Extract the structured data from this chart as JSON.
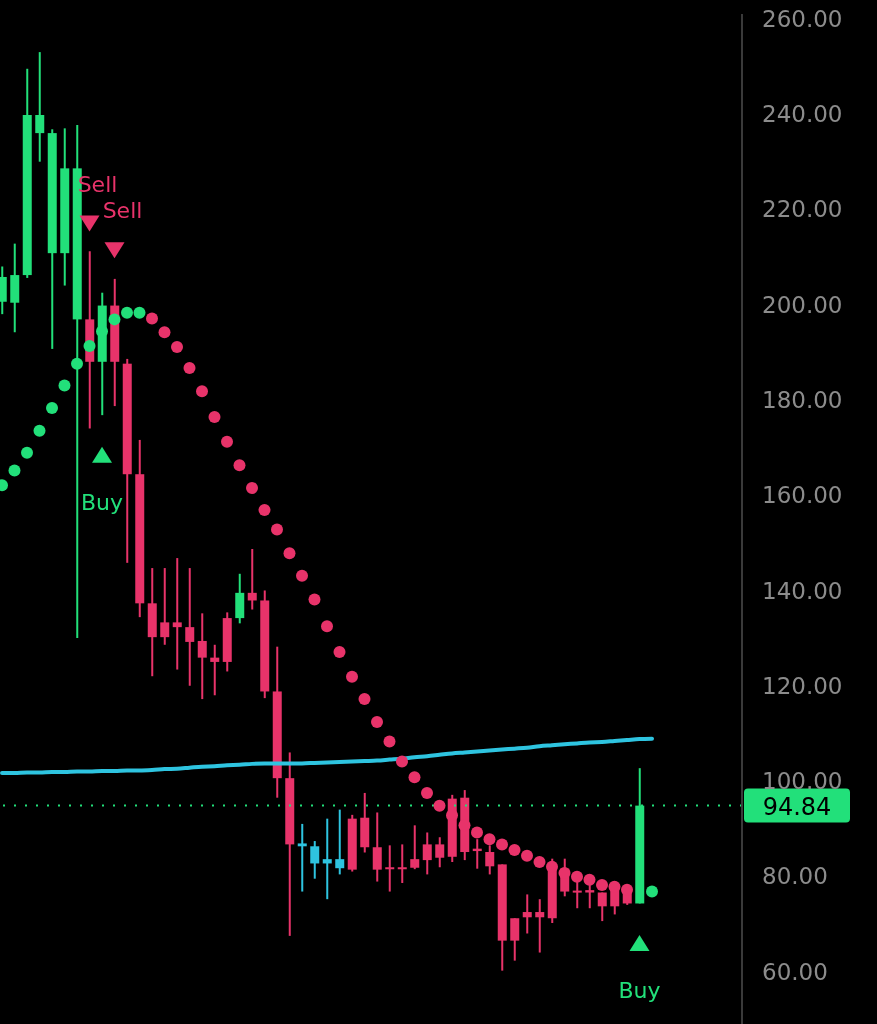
{
  "chart_data": {
    "type": "candlestick",
    "categories": [
      null,
      null,
      null,
      null,
      null,
      null,
      null,
      null,
      null,
      null,
      null,
      null,
      null,
      null,
      null,
      null,
      null,
      null,
      null,
      null,
      null,
      null,
      null,
      null,
      null,
      null,
      null,
      null,
      null,
      null,
      null,
      null,
      null,
      null,
      null,
      null,
      null,
      null,
      null,
      null,
      null,
      null,
      null,
      null,
      null,
      null,
      null,
      null,
      null,
      null,
      null,
      null,
      null
    ],
    "ohlc": [
      [
        200.6,
        208,
        198,
        205.8
      ],
      [
        200.4,
        212.8,
        194.2,
        206.2
      ],
      [
        206.2,
        249.5,
        205.6,
        239.8
      ],
      [
        236,
        253,
        230,
        239.8
      ],
      [
        210.8,
        236.8,
        190.7,
        236
      ],
      [
        210.8,
        237,
        204,
        228.6
      ],
      [
        196.9,
        237.7,
        130,
        228.6
      ],
      [
        196.9,
        211.2,
        174,
        188
      ],
      [
        188,
        202.5,
        176.8,
        199.8
      ],
      [
        199.8,
        205.4,
        178.7,
        188
      ],
      [
        187.6,
        188.6,
        145.8,
        164.4
      ],
      [
        164.4,
        171.6,
        134.4,
        137.3
      ],
      [
        137.3,
        144.7,
        122,
        130.2
      ],
      [
        133.3,
        144.7,
        128.6,
        130.2
      ],
      [
        133.3,
        146.8,
        123.4,
        132.3
      ],
      [
        132.3,
        144.7,
        120,
        129.2
      ],
      [
        129.4,
        135.2,
        117.2,
        125.9
      ],
      [
        125.9,
        128.6,
        118,
        125
      ],
      [
        134.2,
        135.4,
        123,
        125
      ],
      [
        134.2,
        143.5,
        133.1,
        139.5
      ],
      [
        139.5,
        148.7,
        136,
        137.9
      ],
      [
        137.9,
        140,
        117.4,
        118.8
      ],
      [
        118.8,
        128.2,
        96.5,
        100.6
      ],
      [
        100.6,
        106,
        67.5,
        86.7
      ],
      [
        86.9,
        91,
        76.8,
        86.3
      ],
      [
        86.3,
        87.4,
        79.5,
        82.7
      ],
      [
        83.6,
        92.1,
        75.2,
        82.7
      ],
      [
        83.6,
        94,
        80.4,
        81.7
      ],
      [
        92.1,
        92.9,
        81,
        81.4
      ],
      [
        92.3,
        97.5,
        85,
        86.1
      ],
      [
        86.1,
        93.4,
        78.9,
        81.4
      ],
      [
        81.9,
        86.5,
        76.8,
        81.5
      ],
      [
        81.9,
        86.7,
        78.6,
        81.6
      ],
      [
        83.6,
        90.7,
        81.5,
        81.8
      ],
      [
        86.7,
        89.2,
        80.4,
        83.4
      ],
      [
        86.7,
        88.2,
        81.9,
        83.9
      ],
      [
        96.3,
        97.1,
        83,
        84.1
      ],
      [
        96.5,
        98.1,
        83.4,
        85.1
      ],
      [
        85.8,
        87.8,
        81.6,
        85.3
      ],
      [
        85.1,
        86.5,
        80.4,
        82.1
      ],
      [
        82.5,
        82.5,
        60.2,
        66.5
      ],
      [
        71.2,
        71.2,
        62.3,
        66.5
      ],
      [
        72.5,
        76.2,
        68,
        71.4
      ],
      [
        72.5,
        75.2,
        64,
        71.4
      ],
      [
        82.5,
        83.7,
        70.2,
        71.2
      ],
      [
        81.6,
        83.7,
        75.8,
        76.8
      ],
      [
        77,
        79,
        73.3,
        76.6
      ],
      [
        77.1,
        79,
        73.3,
        76.6
      ],
      [
        76.6,
        76.6,
        70.6,
        73.7
      ],
      [
        77.5,
        78,
        72,
        73.7
      ],
      [
        77.5,
        77.5,
        74,
        74.3
      ],
      [
        74.3,
        102.7,
        74.3,
        94.84
      ],
      null
    ],
    "colors": [
      "#22e07a",
      "#22e07a",
      "#22e07a",
      "#22e07a",
      "#22e07a",
      "#22e07a",
      "#22e07a",
      "#e8336a",
      "#22e07a",
      "#e8336a",
      "#e8336a",
      "#e8336a",
      "#e8336a",
      "#e8336a",
      "#e8336a",
      "#e8336a",
      "#e8336a",
      "#e8336a",
      "#e8336a",
      "#22e07a",
      "#e8336a",
      "#e8336a",
      "#e8336a",
      "#e8336a",
      "#2ec4e0",
      "#2ec4e0",
      "#2ec4e0",
      "#2ec4e0",
      "#e8336a",
      "#e8336a",
      "#e8336a",
      "#e8336a",
      "#e8336a",
      "#e8336a",
      "#e8336a",
      "#e8336a",
      "#e8336a",
      "#e8336a",
      "#e8336a",
      "#e8336a",
      "#e8336a",
      "#e8336a",
      "#e8336a",
      "#e8336a",
      "#e8336a",
      "#e8336a",
      "#e8336a",
      "#e8336a",
      "#e8336a",
      "#e8336a",
      "#e8336a",
      "#22e07a",
      null
    ],
    "series": [
      {
        "type": "line",
        "color": "#2ec4e0",
        "values": [
          101.7,
          101.7,
          101.8,
          101.8,
          101.9,
          101.9,
          102.0,
          102.0,
          102.1,
          102.1,
          102.2,
          102.2,
          102.3,
          102.5,
          102.6,
          102.8,
          103.0,
          103.1,
          103.3,
          103.4,
          103.6,
          103.7,
          103.7,
          103.7,
          103.7,
          103.8,
          103.9,
          104.0,
          104.1,
          104.2,
          104.3,
          104.5,
          104.7,
          105.0,
          105.2,
          105.5,
          105.8,
          106.0,
          106.2,
          106.4,
          106.6,
          106.8,
          107.0,
          107.3,
          107.5,
          107.7,
          107.9,
          108.1,
          108.2,
          108.4,
          108.6,
          108.8,
          108.9
        ]
      },
      {
        "type": "scatter",
        "color": "#22e07a",
        "marker": "circle",
        "values": [
          162.1,
          165.2,
          168.9,
          173.5,
          178.3,
          183,
          187.6,
          191.3,
          194.4,
          196.9,
          198.3,
          198.3,
          null,
          null,
          null,
          null,
          null,
          null,
          null,
          null,
          null,
          null,
          null,
          null,
          null,
          null,
          null,
          null,
          null,
          null,
          null,
          null,
          null,
          null,
          null,
          null,
          null,
          null,
          null,
          null,
          null,
          null,
          null,
          null,
          null,
          null,
          null,
          null,
          null,
          null,
          null,
          null,
          76.8
        ]
      },
      {
        "type": "scatter",
        "color": "#e8336a",
        "marker": "circle",
        "values": [
          null,
          null,
          null,
          null,
          null,
          null,
          null,
          null,
          null,
          null,
          null,
          null,
          197.1,
          194.2,
          191.1,
          186.7,
          181.8,
          176.4,
          171.2,
          166.3,
          161.5,
          156.9,
          152.8,
          147.8,
          143.1,
          138.1,
          132.5,
          127.1,
          121.9,
          117.2,
          112.4,
          108.3,
          104.1,
          100.8,
          97.5,
          94.8,
          92.8,
          90.7,
          89.2,
          87.8,
          86.7,
          85.5,
          84.3,
          83,
          82,
          80.7,
          79.9,
          79.3,
          78.2,
          77.8,
          77.2,
          null,
          null
        ]
      },
      {
        "type": "scatter",
        "color": "#e8336a",
        "marker": "triangle",
        "values": [
          null,
          null,
          null,
          null,
          null,
          null,
          null,
          217,
          null,
          211.4,
          null,
          null,
          null,
          null,
          null,
          null,
          null,
          null,
          null,
          null,
          null,
          null,
          null,
          null,
          null,
          null,
          null,
          null,
          null,
          null,
          null,
          null,
          null,
          null,
          null,
          null,
          null,
          null,
          null,
          null,
          null,
          null,
          null,
          null,
          null,
          null,
          null,
          null,
          null,
          null,
          null,
          null,
          null
        ],
        "value_labels": [
          null,
          null,
          null,
          null,
          null,
          null,
          null,
          "Sell",
          null,
          "Sell",
          null,
          null,
          null,
          null,
          null,
          null,
          null,
          null,
          null,
          null,
          null,
          null,
          null,
          null,
          null,
          null,
          null,
          null,
          null,
          null,
          null,
          null,
          null,
          null,
          null,
          null,
          null,
          null,
          null,
          null,
          null,
          null,
          null,
          null,
          null,
          null,
          null,
          null,
          null,
          null,
          null,
          null,
          null
        ]
      },
      {
        "type": "scatter",
        "color": "#22e07a",
        "marker": "triangle",
        "values": [
          null,
          null,
          null,
          null,
          null,
          null,
          null,
          null,
          168.5,
          null,
          null,
          null,
          null,
          null,
          null,
          null,
          null,
          null,
          null,
          null,
          null,
          null,
          null,
          null,
          null,
          null,
          null,
          null,
          null,
          null,
          null,
          null,
          null,
          null,
          null,
          null,
          null,
          null,
          null,
          null,
          null,
          null,
          null,
          null,
          null,
          null,
          null,
          null,
          null,
          null,
          null,
          66,
          null
        ],
        "value_labels": [
          null,
          null,
          null,
          null,
          null,
          null,
          null,
          null,
          "Buy",
          null,
          null,
          null,
          null,
          null,
          null,
          null,
          null,
          null,
          null,
          null,
          null,
          null,
          null,
          null,
          null,
          null,
          null,
          null,
          null,
          null,
          null,
          null,
          null,
          null,
          null,
          null,
          null,
          null,
          null,
          null,
          null,
          null,
          null,
          null,
          null,
          null,
          null,
          null,
          null,
          null,
          null,
          "Buy",
          null
        ]
      }
    ],
    "ylim": [
      49,
      261
    ],
    "yticks": [
      {
        "value": 60,
        "label": "60.00"
      },
      {
        "value": 80,
        "label": "80.00"
      },
      {
        "value": 100,
        "label": "100.00"
      },
      {
        "value": 120,
        "label": "120.00"
      },
      {
        "value": 140,
        "label": "140.00"
      },
      {
        "value": 160,
        "label": "160.00"
      },
      {
        "value": 180,
        "label": "180.00"
      },
      {
        "value": 200,
        "label": "200.00"
      },
      {
        "value": 220,
        "label": "220.00"
      },
      {
        "value": 240,
        "label": "240.00"
      },
      {
        "value": 260,
        "label": "260.00"
      }
    ],
    "ref_lines": [
      {
        "axis": "y",
        "value": 94.84,
        "label": "94.84",
        "color": "#22e07a",
        "line_style": "dotted"
      }
    ],
    "tick_labels": "y"
  }
}
